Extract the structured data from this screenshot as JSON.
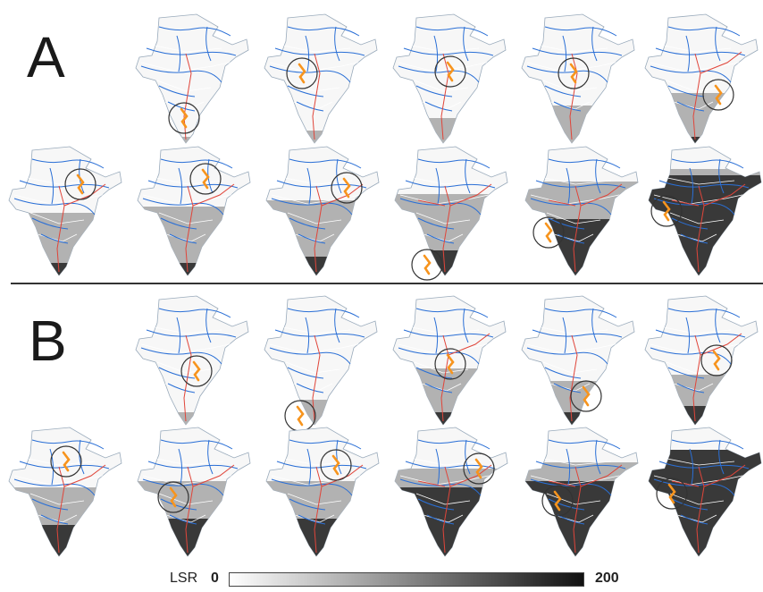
{
  "panels": [
    {
      "label": "A"
    },
    {
      "label": "B"
    }
  ],
  "legend": {
    "title": "LSR",
    "min": "0",
    "max": "200"
  },
  "maps": {
    "A": [
      {
        "fill": 0.05,
        "dark": 0.0
      },
      {
        "fill": 0.1,
        "dark": 0.0
      },
      {
        "fill": 0.2,
        "dark": 0.0
      },
      {
        "fill": 0.3,
        "dark": 0.0
      },
      {
        "fill": 0.4,
        "dark": 0.05
      },
      {
        "fill": 0.5,
        "dark": 0.1
      },
      {
        "fill": 0.55,
        "dark": 0.1
      },
      {
        "fill": 0.6,
        "dark": 0.15
      },
      {
        "fill": 0.65,
        "dark": 0.2
      },
      {
        "fill": 0.75,
        "dark": 0.45
      },
      {
        "fill": 0.85,
        "dark": 0.8
      }
    ],
    "B": [
      {
        "fill": 0.1,
        "dark": 0.0
      },
      {
        "fill": 0.2,
        "dark": 0.0
      },
      {
        "fill": 0.45,
        "dark": 0.1
      },
      {
        "fill": 0.35,
        "dark": 0.1
      },
      {
        "fill": 0.4,
        "dark": 0.15
      },
      {
        "fill": 0.55,
        "dark": 0.25
      },
      {
        "fill": 0.6,
        "dark": 0.3
      },
      {
        "fill": 0.6,
        "dark": 0.3
      },
      {
        "fill": 0.7,
        "dark": 0.55
      },
      {
        "fill": 0.75,
        "dark": 0.6
      },
      {
        "fill": 0.85,
        "dark": 0.85
      }
    ]
  }
}
